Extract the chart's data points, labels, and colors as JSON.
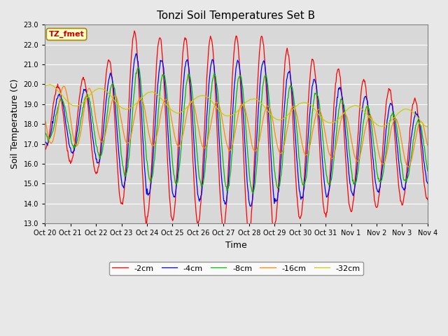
{
  "title": "Tonzi Soil Temperatures Set B",
  "xlabel": "Time",
  "ylabel": "Soil Temperature (C)",
  "ylim": [
    13.0,
    23.0
  ],
  "yticks": [
    13.0,
    14.0,
    15.0,
    16.0,
    17.0,
    18.0,
    19.0,
    20.0,
    21.0,
    22.0,
    23.0
  ],
  "xtick_labels": [
    "Oct 20",
    "Oct 21",
    "Oct 22",
    "Oct 23",
    "Oct 24",
    "Oct 25",
    "Oct 26",
    "Oct 27",
    "Oct 28",
    "Oct 29",
    "Oct 30",
    "Oct 31",
    "Nov 1",
    "Nov 2",
    "Nov 3",
    "Nov 4"
  ],
  "series_colors": [
    "#ff0000",
    "#0000ff",
    "#00bb00",
    "#ff8800",
    "#cccc00"
  ],
  "series_labels": [
    "-2cm",
    "-4cm",
    "-8cm",
    "-16cm",
    "-32cm"
  ],
  "legend_label": "TZ_fmet",
  "legend_box_color": "#ffffcc",
  "legend_box_edge": "#aa8800",
  "bg_color": "#e8e8e8",
  "plot_bg_color": "#d8d8d8"
}
